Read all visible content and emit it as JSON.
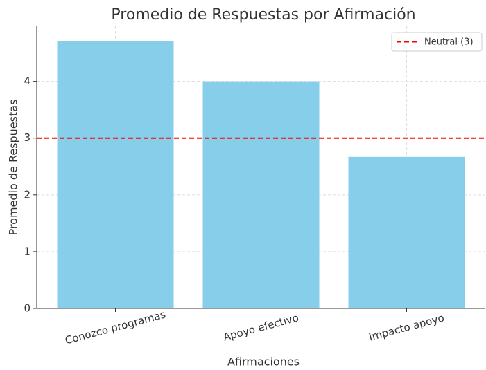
{
  "chart_data": {
    "type": "bar",
    "title": "Promedio de Respuestas por Afirmación",
    "x_label": "Afirmaciones",
    "y_label": "Promedio de Respuestas",
    "categories": [
      "Conozco programas",
      "Apoyo efectivo",
      "Impacto apoyo"
    ],
    "values": [
      4.71,
      4.0,
      2.67
    ],
    "color": "#87ceeb",
    "ylim": [
      0,
      4.97
    ],
    "yticks": [
      0,
      1,
      2,
      3,
      4
    ],
    "grid": true,
    "reference_line": {
      "value": 3,
      "label": "Neutral (3)",
      "color": "#ff0000"
    },
    "legend": "upper right"
  }
}
